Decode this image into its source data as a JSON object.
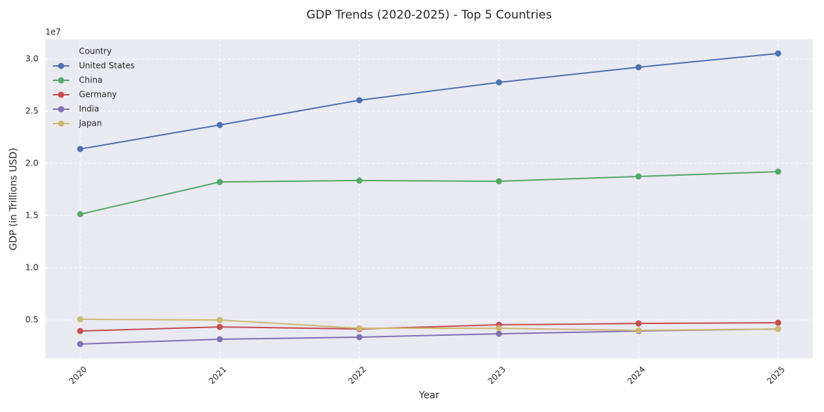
{
  "chart_data": {
    "type": "line",
    "title": "GDP Trends (2020-2025) - Top 5 Countries",
    "x_label": "Year",
    "y_label": "GDP (in Trillions USD)",
    "y_offset_label": "1e7",
    "legend_title": "Country",
    "legend": "upper left",
    "grid": true,
    "x": [
      2020,
      2021,
      2022,
      2023,
      2024,
      2025
    ],
    "xlim": [
      2019.75,
      2025.25
    ],
    "xticks": [
      2020,
      2021,
      2022,
      2023,
      2024,
      2025
    ],
    "ylim": [
      0.132,
      3.19
    ],
    "yticks": [
      {
        "value": 0.5,
        "label": "0.5"
      },
      {
        "value": 1,
        "label": "1.0"
      },
      {
        "value": 1.5,
        "label": "1.5"
      },
      {
        "value": 2,
        "label": "2.0"
      },
      {
        "value": 2.5,
        "label": "2.5"
      },
      {
        "value": 3,
        "label": "3.0"
      }
    ],
    "series": [
      {
        "name": "United States",
        "color": "#4c72b0",
        "values": [
          2.138,
          2.368,
          2.605,
          2.776,
          2.921,
          3.053
        ]
      },
      {
        "name": "China",
        "color": "#55a868",
        "values": [
          1.513,
          1.822,
          1.836,
          1.829,
          1.875,
          1.921
        ]
      },
      {
        "name": "Germany",
        "color": "#c44e52",
        "values": [
          0.395,
          0.434,
          0.414,
          0.454,
          0.467,
          0.474
        ]
      },
      {
        "name": "India",
        "color": "#8172b2",
        "values": [
          0.27,
          0.316,
          0.336,
          0.368,
          0.395,
          0.414
        ]
      },
      {
        "name": "Japan",
        "color": "#ccb974",
        "values": [
          0.507,
          0.5,
          0.421,
          0.421,
          0.401,
          0.414
        ]
      }
    ]
  }
}
